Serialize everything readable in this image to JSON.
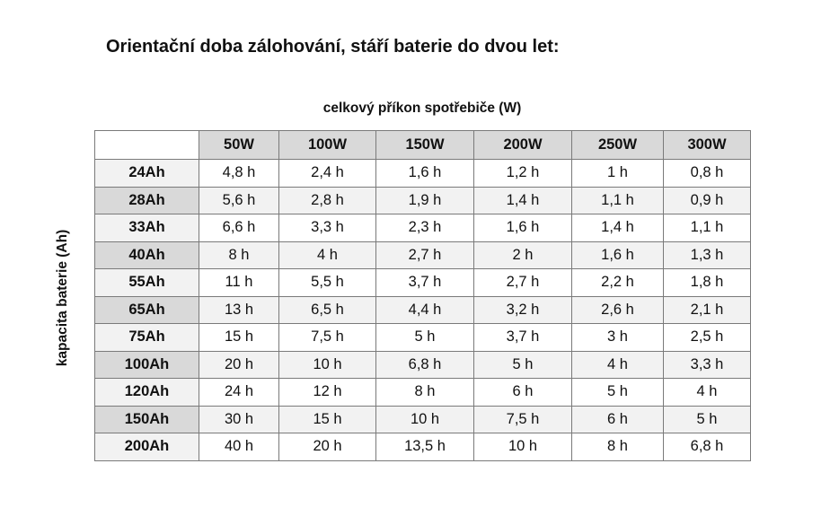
{
  "title": "Orientační doba zálohování, stáří baterie do dvou let:",
  "column_group_label": "celkový příkon spotřebiče (W)",
  "row_group_label": "kapacita baterie (Ah)",
  "columns": [
    "50W",
    "100W",
    "150W",
    "200W",
    "250W",
    "300W"
  ],
  "rows": [
    {
      "label": "24Ah",
      "values": [
        "4,8 h",
        "2,4 h",
        "1,6 h",
        "1,2 h",
        "1 h",
        "0,8 h"
      ]
    },
    {
      "label": "28Ah",
      "values": [
        "5,6 h",
        "2,8 h",
        "1,9 h",
        "1,4 h",
        "1,1 h",
        "0,9 h"
      ]
    },
    {
      "label": "33Ah",
      "values": [
        "6,6 h",
        "3,3 h",
        "2,3 h",
        "1,6 h",
        "1,4 h",
        "1,1 h"
      ]
    },
    {
      "label": "40Ah",
      "values": [
        "8 h",
        "4 h",
        "2,7 h",
        "2 h",
        "1,6 h",
        "1,3 h"
      ]
    },
    {
      "label": "55Ah",
      "values": [
        "11 h",
        "5,5 h",
        "3,7 h",
        "2,7 h",
        "2,2 h",
        "1,8 h"
      ]
    },
    {
      "label": "65Ah",
      "values": [
        "13 h",
        "6,5 h",
        "4,4 h",
        "3,2 h",
        "2,6 h",
        "2,1 h"
      ]
    },
    {
      "label": "75Ah",
      "values": [
        "15 h",
        "7,5 h",
        "5 h",
        "3,7 h",
        "3 h",
        "2,5 h"
      ]
    },
    {
      "label": "100Ah",
      "values": [
        "20 h",
        "10 h",
        "6,8 h",
        "5 h",
        "4 h",
        "3,3 h"
      ]
    },
    {
      "label": "120Ah",
      "values": [
        "24 h",
        "12 h",
        "8 h",
        "6 h",
        "5 h",
        "4 h"
      ]
    },
    {
      "label": "150Ah",
      "values": [
        "30 h",
        "15 h",
        "10 h",
        "7,5 h",
        "6 h",
        "5 h"
      ]
    },
    {
      "label": "200Ah",
      "values": [
        "40 h",
        "20 h",
        "13,5 h",
        "10 h",
        "8 h",
        "6,8 h"
      ]
    }
  ]
}
